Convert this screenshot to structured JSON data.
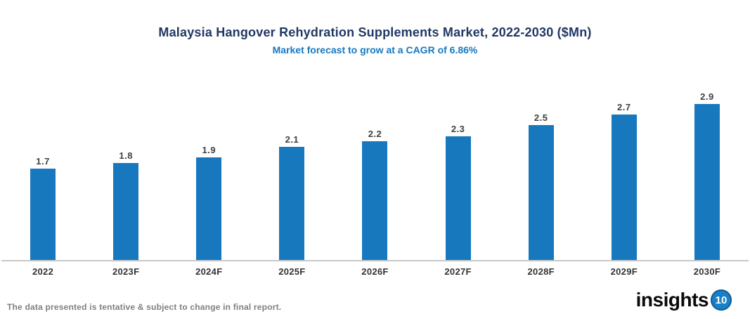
{
  "chart": {
    "title": "Malaysia Hangover Rehydration Supplements Market, 2022-2030 ($Mn)",
    "subtitle": "Market forecast to grow at a CAGR of 6.86%"
  },
  "chart_data": {
    "type": "bar",
    "title": "Malaysia Hangover Rehydration Supplements Market, 2022-2030 ($Mn)",
    "subtitle": "Market forecast to grow at a CAGR of 6.86%",
    "categories": [
      "2022",
      "2023F",
      "2024F",
      "2025F",
      "2026F",
      "2027F",
      "2028F",
      "2029F",
      "2030F"
    ],
    "values": [
      1.7,
      1.8,
      1.9,
      2.1,
      2.2,
      2.3,
      2.5,
      2.7,
      2.9
    ],
    "xlabel": "",
    "ylabel": "",
    "ylim": [
      0,
      3.0
    ],
    "grid": false,
    "legend": false,
    "bar_color": "#1878BE",
    "value_label_color": "#404040",
    "axis_line_color": "#C8C8C8"
  },
  "footer": {
    "disclaimer": "The data presented is tentative & subject to change in final report.",
    "logo_text": "insights",
    "logo_badge": "10",
    "logo_badge_color": "#1B7FC7"
  }
}
